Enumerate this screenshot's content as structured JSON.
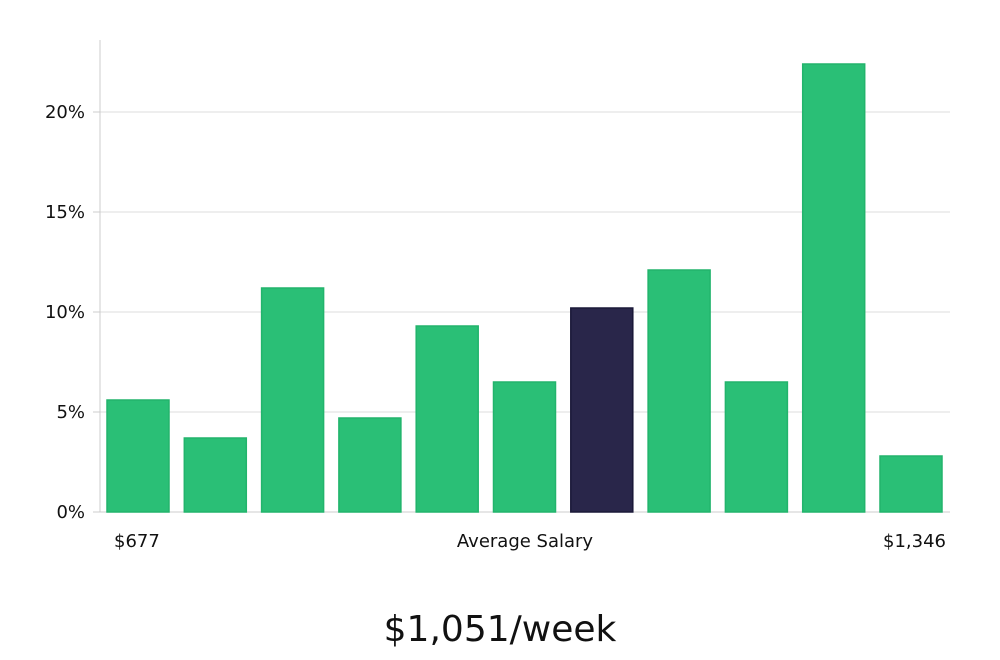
{
  "headline": "$1,051/week",
  "colors": {
    "bar": "#2abf76",
    "bar_stroke": "#22b46c",
    "highlight": "#29264a",
    "highlight_stroke": "#1a1838",
    "grid": "#dddddd",
    "axis": "#cccccc",
    "text": "#111111"
  },
  "chart_data": {
    "type": "bar",
    "title": "",
    "xlabel": "Average Salary",
    "ylabel": "",
    "x_labels": {
      "left": "$677",
      "center": "Average Salary",
      "right": "$1,346"
    },
    "values": [
      5.6,
      3.7,
      11.2,
      4.7,
      9.3,
      6.5,
      10.2,
      12.1,
      6.5,
      22.4,
      2.8
    ],
    "highlight_index": 6,
    "unit": "%",
    "ylim": [
      0,
      23.5
    ],
    "yticks": [
      0,
      5,
      10,
      15,
      20
    ],
    "ytick_labels": [
      "0%",
      "5%",
      "10%",
      "15%",
      "20%"
    ],
    "grid": true,
    "legend": "none"
  }
}
